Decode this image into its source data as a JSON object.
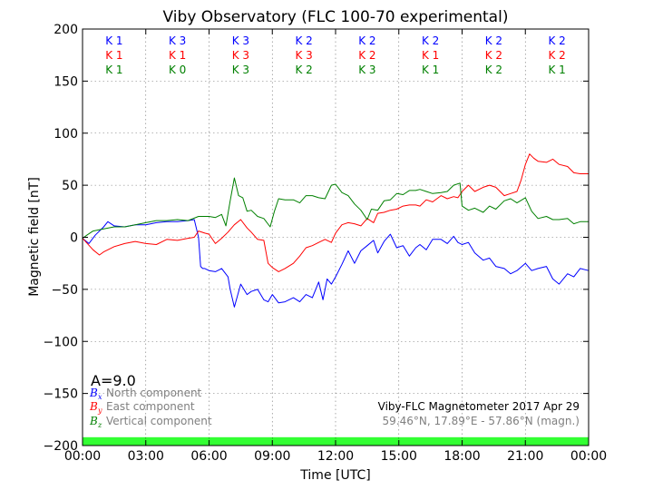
{
  "chart_data": {
    "type": "line",
    "title": "Viby Observatory (FLC 100-70 experimental)",
    "xlabel": "Time [UTC]",
    "ylabel": "Magnetic field [nT]",
    "ylim": [
      -200,
      200
    ],
    "xlim_hours": [
      0,
      24
    ],
    "xticks": [
      "00:00",
      "03:00",
      "06:00",
      "09:00",
      "12:00",
      "15:00",
      "18:00",
      "21:00",
      "00:00"
    ],
    "yticks": [
      200,
      150,
      100,
      50,
      0,
      -50,
      -100,
      -150,
      -200
    ],
    "grid": true,
    "activity_index": "A=9.0",
    "k_indices": {
      "x": [
        1,
        3,
        3,
        2,
        2,
        2,
        2,
        2
      ],
      "y": [
        1,
        1,
        3,
        3,
        2,
        1,
        2,
        2
      ],
      "z": [
        1,
        0,
        3,
        2,
        3,
        1,
        2,
        1
      ]
    },
    "colors": {
      "x": "#0000ff",
      "y": "#ff0000",
      "z": "#008000",
      "band": "#33ff33"
    },
    "legend": {
      "placement": "bottom-left",
      "entries": [
        {
          "symbol": "B",
          "sub": "x",
          "label": "North component"
        },
        {
          "symbol": "B",
          "sub": "y",
          "label": "East component"
        },
        {
          "symbol": "B",
          "sub": "z",
          "label": "Vertical component"
        }
      ]
    },
    "info_line1": "Viby-FLC Magnetometer 2017 Apr 29",
    "info_line2": "59.46°N, 17.89°E - 57.86°N (magn.)",
    "series": [
      {
        "key": "x",
        "x": [
          0,
          0.3,
          0.6,
          1,
          1.2,
          1.5,
          2,
          2.5,
          3,
          3.5,
          4,
          4.5,
          5,
          5.3,
          5.5,
          5.6,
          5.7,
          5.8,
          6,
          6.3,
          6.6,
          6.9,
          7,
          7.2,
          7.5,
          7.8,
          8,
          8.3,
          8.6,
          8.8,
          9,
          9.3,
          9.6,
          10,
          10.3,
          10.6,
          10.9,
          11.2,
          11.4,
          11.6,
          11.8,
          12,
          12.3,
          12.6,
          12.9,
          13.2,
          13.5,
          13.8,
          14,
          14.3,
          14.6,
          14.9,
          15.2,
          15.5,
          15.8,
          16,
          16.3,
          16.6,
          17,
          17.3,
          17.6,
          17.8,
          18,
          18.3,
          18.6,
          19,
          19.3,
          19.6,
          20,
          20.3,
          20.6,
          21,
          21.3,
          21.6,
          22,
          22.3,
          22.6,
          23,
          23.3,
          23.6,
          24
        ],
        "values": [
          -1,
          -6,
          2,
          10,
          15,
          11,
          10,
          12,
          12,
          14,
          15,
          15,
          16,
          17,
          0,
          -28,
          -30,
          -30,
          -32,
          -33,
          -30,
          -38,
          -50,
          -67,
          -45,
          -55,
          -52,
          -50,
          -60,
          -62,
          -55,
          -63,
          -62,
          -58,
          -62,
          -55,
          -58,
          -43,
          -60,
          -40,
          -45,
          -38,
          -26,
          -13,
          -25,
          -13,
          -8,
          -3,
          -15,
          -4,
          3,
          -10,
          -8,
          -18,
          -10,
          -7,
          -12,
          -2,
          -2,
          -6,
          1,
          -5,
          -7,
          -5,
          -15,
          -22,
          -20,
          -28,
          -30,
          -35,
          -32,
          -25,
          -32,
          -30,
          -28,
          -40,
          -45,
          -35,
          -38,
          -30,
          -32
        ]
      },
      {
        "key": "y",
        "x": [
          0,
          0.5,
          0.8,
          1,
          1.5,
          2,
          2.5,
          3,
          3.5,
          4,
          4.5,
          5,
          5.3,
          5.5,
          5.8,
          6,
          6.3,
          6.6,
          6.9,
          7.2,
          7.5,
          7.8,
          8,
          8.3,
          8.6,
          8.8,
          9,
          9.3,
          9.6,
          10,
          10.3,
          10.6,
          10.9,
          11.2,
          11.5,
          11.8,
          12,
          12.3,
          12.6,
          12.9,
          13.2,
          13.5,
          13.8,
          14,
          14.3,
          14.6,
          14.9,
          15.2,
          15.5,
          15.8,
          16,
          16.3,
          16.6,
          17,
          17.3,
          17.6,
          17.8,
          18,
          18.3,
          18.6,
          19,
          19.3,
          19.6,
          20,
          20.3,
          20.6,
          20.8,
          21,
          21.2,
          21.4,
          21.6,
          22,
          22.3,
          22.6,
          23,
          23.3,
          23.6,
          24
        ],
        "values": [
          -1,
          -12,
          -17,
          -14,
          -9,
          -6,
          -4,
          -6,
          -7,
          -2,
          -3,
          -1,
          0,
          6,
          4,
          3,
          -6,
          -1,
          5,
          12,
          17,
          9,
          5,
          -2,
          -3,
          -25,
          -29,
          -33,
          -30,
          -25,
          -18,
          -10,
          -8,
          -5,
          -2,
          -5,
          4,
          12,
          14,
          13,
          11,
          18,
          14,
          23,
          24,
          26,
          27,
          30,
          31,
          31,
          30,
          36,
          34,
          40,
          37,
          39,
          38,
          44,
          50,
          44,
          48,
          50,
          48,
          40,
          42,
          44,
          55,
          70,
          80,
          76,
          73,
          72,
          75,
          70,
          68,
          62,
          61,
          61
        ]
      },
      {
        "key": "z",
        "x": [
          0,
          0.2,
          0.5,
          1,
          1.5,
          2,
          2.5,
          3,
          3.5,
          4,
          4.5,
          5,
          5.5,
          6,
          6.3,
          6.6,
          6.8,
          7,
          7.2,
          7.4,
          7.6,
          7.8,
          8,
          8.3,
          8.6,
          8.9,
          9.1,
          9.3,
          9.6,
          10,
          10.3,
          10.6,
          10.9,
          11.2,
          11.5,
          11.8,
          12,
          12.3,
          12.6,
          12.9,
          13.2,
          13.5,
          13.7,
          14,
          14.3,
          14.6,
          14.9,
          15.2,
          15.5,
          15.8,
          16,
          16.3,
          16.6,
          17,
          17.3,
          17.6,
          17.9,
          18,
          18.3,
          18.6,
          19,
          19.3,
          19.6,
          20,
          20.3,
          20.6,
          21,
          21.3,
          21.6,
          22,
          22.3,
          22.6,
          23,
          23.3,
          23.6,
          24
        ],
        "values": [
          -1,
          2,
          6,
          8,
          10,
          10,
          12,
          14,
          16,
          16,
          17,
          16,
          20,
          20,
          19,
          22,
          11,
          35,
          57,
          40,
          38,
          25,
          26,
          20,
          18,
          10,
          25,
          37,
          36,
          36,
          33,
          40,
          40,
          38,
          37,
          50,
          51,
          43,
          40,
          32,
          26,
          17,
          27,
          26,
          35,
          36,
          42,
          41,
          45,
          45,
          46,
          44,
          42,
          43,
          44,
          50,
          52,
          30,
          26,
          28,
          24,
          30,
          27,
          35,
          37,
          33,
          38,
          25,
          18,
          20,
          17,
          17,
          18,
          13,
          15,
          15
        ]
      }
    ]
  }
}
